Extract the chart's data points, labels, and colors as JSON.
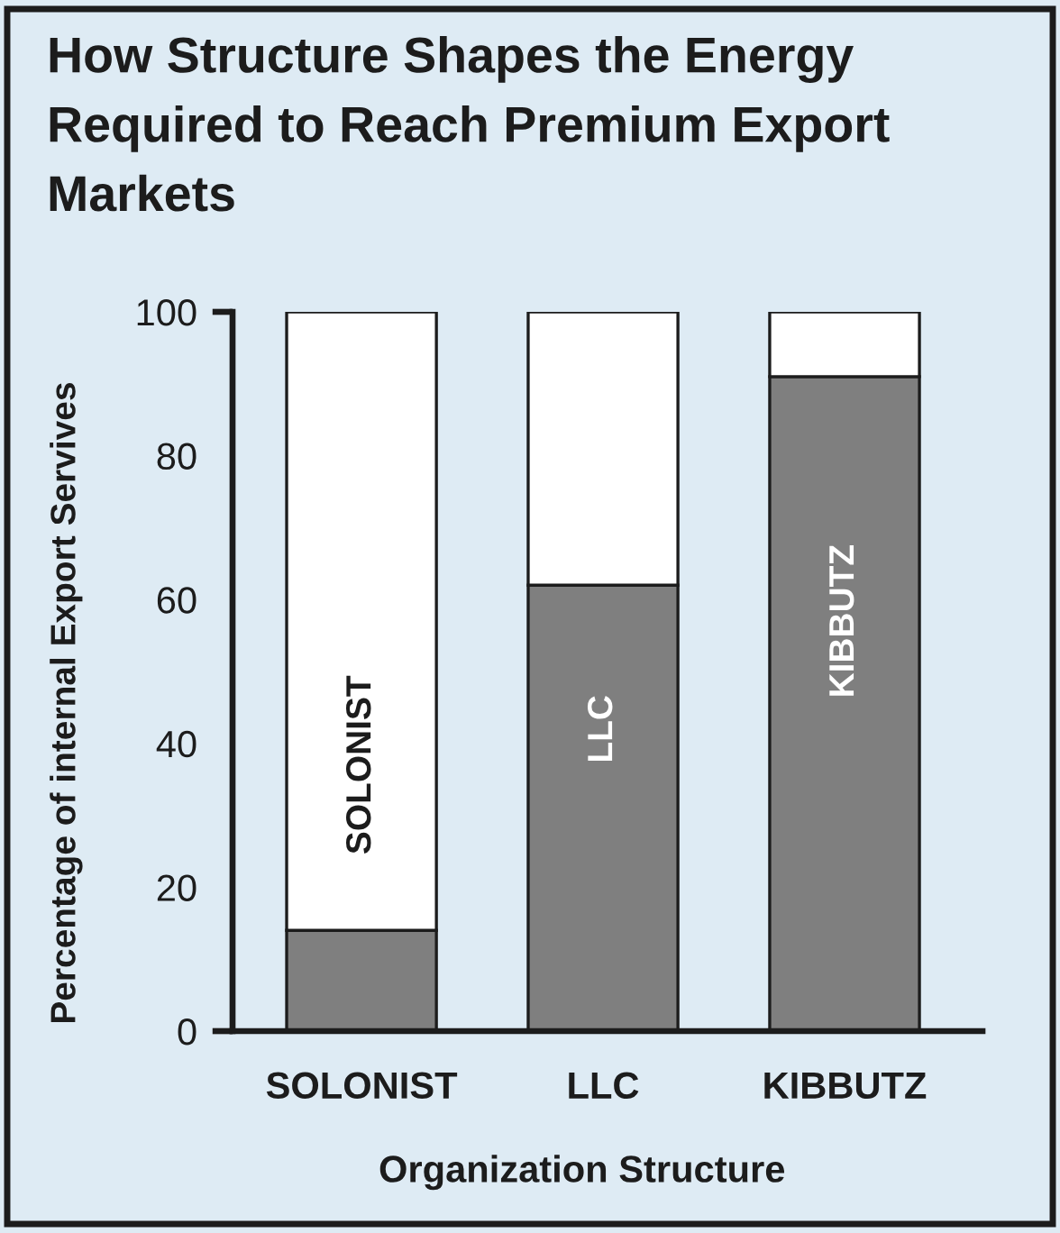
{
  "chart_data": {
    "type": "bar",
    "title": "How Structure Shapes the Energy Required to Reach Premium Export Markets",
    "xlabel": "Organization Structure",
    "ylabel": "Percentage of internal Export Servives",
    "categories": [
      "SOLONIST",
      "LLC",
      "KIBBUTZ"
    ],
    "stacked": true,
    "series": [
      {
        "color": "#7f7f7f",
        "values": [
          14,
          62,
          91
        ]
      },
      {
        "color": "#ffffff",
        "values": [
          86,
          38,
          9
        ]
      }
    ],
    "ylim": [
      0,
      100
    ],
    "yticks": [
      0,
      20,
      40,
      60,
      80,
      100
    ],
    "annotations": [
      "SOLONIST",
      "LLC",
      "KIBBUTZ"
    ]
  }
}
